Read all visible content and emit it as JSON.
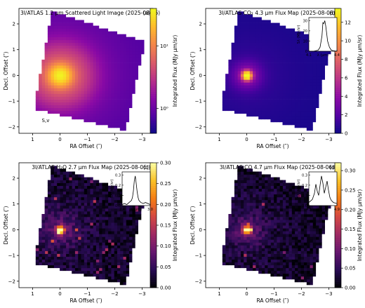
{
  "chart_data": [
    {
      "type": "heatmap",
      "panel": "(a)",
      "title": "3I/ATLAS 1.2 μm Scattered Light Image (2025-08-06)",
      "xlabel": "RA Offset (″)",
      "ylabel": "Decl. Offset (″)",
      "colorbar_label": "Integrated Flux (MJy μm/sr)",
      "colorbar_scale": "log",
      "colorbar_range": [
        0.4,
        40
      ],
      "colorbar_ticks": [
        {
          "value": 1,
          "label": "10⁰"
        },
        {
          "value": 10,
          "label": "10¹"
        }
      ],
      "colormap": "plasma",
      "xlim": [
        1.5,
        -3.4
      ],
      "ylim": [
        -2.25,
        2.6
      ],
      "xticks": [
        1,
        0,
        -1,
        -2,
        -3
      ],
      "yticks": [
        -2,
        -1,
        0,
        1,
        2
      ],
      "peak": [
        0,
        0
      ],
      "annotation": "S,v"
    },
    {
      "type": "heatmap",
      "panel": "(b)",
      "title": "3I/ATLAS CO₂ 4.3 μm Flux Map (2025-08-06)",
      "xlabel": "RA Offset (″)",
      "ylabel": "Decl. Offset (″)",
      "colorbar_label": "Integrated Flux (MJy μm/sr)",
      "colorbar_range": [
        0,
        13.5
      ],
      "colorbar_ticks": [
        0,
        2,
        4,
        6,
        8,
        10,
        12
      ],
      "colormap": "plasma",
      "xlim": [
        1.5,
        -3.4
      ],
      "ylim": [
        -2.25,
        2.6
      ],
      "xticks": [
        1,
        0,
        -1,
        -2,
        -3
      ],
      "yticks": [
        -2,
        -1,
        0,
        1,
        2
      ],
      "peak": [
        0,
        0
      ],
      "inset": {
        "xlabel": "λ (μm)",
        "ylabel": "Sλ (MJy/sr)",
        "xticks": [
          "4.1",
          "4.4"
        ],
        "yticks": [
          "0",
          "10",
          "20",
          "30"
        ],
        "x": [
          4.1,
          4.15,
          4.2,
          4.22,
          4.24,
          4.25,
          4.26,
          4.27,
          4.28,
          4.29,
          4.3,
          4.32,
          4.34,
          4.36,
          4.4
        ],
        "y": [
          0,
          0,
          1,
          4,
          15,
          28,
          27,
          30,
          25,
          18,
          10,
          4,
          1,
          0.5,
          0
        ]
      }
    },
    {
      "type": "heatmap",
      "panel": "(c)",
      "title": "3I/ATLAS H₂O 2.7 μm Flux Map (2025-08-06)",
      "xlabel": "RA Offset (″)",
      "ylabel": "Decl. Offset (″)",
      "colorbar_label": "Integrated Flux (MJy μm/sr)",
      "colorbar_range": [
        0,
        0.3
      ],
      "colorbar_ticks": [
        "0.00",
        "0.05",
        "0.10",
        "0.15",
        "0.20",
        "0.25",
        "0.30"
      ],
      "colormap": "inferno",
      "xlim": [
        1.5,
        -3.4
      ],
      "ylim": [
        -2.25,
        2.6
      ],
      "xticks": [
        1,
        0,
        -1,
        -2,
        -3
      ],
      "yticks": [
        -2,
        -1,
        0,
        1,
        2
      ],
      "peak": [
        0,
        0
      ],
      "inset": {
        "xlabel": "λ (μm)",
        "ylabel": "Sλ (MJy/sr)",
        "xticks": [
          "2.4",
          "3.0"
        ],
        "yticks": [
          "0.0",
          "0.1",
          "0.2",
          "0.3"
        ],
        "x": [
          2.4,
          2.45,
          2.5,
          2.55,
          2.6,
          2.62,
          2.64,
          2.66,
          2.68,
          2.7,
          2.72,
          2.74,
          2.76,
          2.8,
          2.85,
          2.9,
          2.95,
          3.0
        ],
        "y": [
          0.01,
          0.02,
          0.01,
          0.03,
          0.05,
          0.08,
          0.14,
          0.24,
          0.29,
          0.22,
          0.14,
          0.08,
          0.05,
          0.03,
          0.02,
          0.03,
          0.02,
          0.01
        ]
      }
    },
    {
      "type": "heatmap",
      "panel": "(d)",
      "title": "3I/ATLAS CO 4.7 μm Flux Map (2025-08-06)",
      "xlabel": "RA Offset (″)",
      "ylabel": "Decl. Offset (″)",
      "colorbar_label": "Integrated Flux (MJy μm/sr)",
      "colorbar_range": [
        0,
        0.32
      ],
      "colorbar_ticks": [
        "0.00",
        "0.05",
        "0.10",
        "0.15",
        "0.20",
        "0.25",
        "0.30"
      ],
      "colormap": "inferno",
      "xlim": [
        1.5,
        -3.4
      ],
      "ylim": [
        -2.25,
        2.6
      ],
      "xticks": [
        1,
        0,
        -1,
        -2,
        -3
      ],
      "yticks": [
        -2,
        -1,
        0,
        1,
        2
      ],
      "peak": [
        0,
        0
      ],
      "inset": {
        "xlabel": "λ (μm)",
        "ylabel": "Sλ (MJy/sr)",
        "xticks": [
          "4.5",
          "4.9"
        ],
        "yticks": [
          "0.0",
          "0.1",
          "0.2",
          "0.3"
        ],
        "x": [
          4.5,
          4.55,
          4.58,
          4.6,
          4.62,
          4.64,
          4.66,
          4.68,
          4.7,
          4.72,
          4.74,
          4.76,
          4.78,
          4.8,
          4.82,
          4.85,
          4.9
        ],
        "y": [
          0.03,
          0.06,
          0.12,
          0.21,
          0.14,
          0.1,
          0.2,
          0.29,
          0.22,
          0.12,
          0.18,
          0.24,
          0.15,
          0.08,
          0.05,
          0.03,
          0.02
        ]
      }
    }
  ]
}
